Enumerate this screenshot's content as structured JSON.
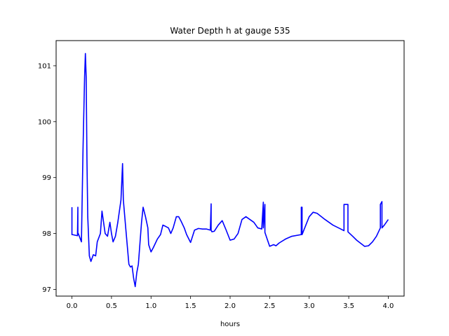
{
  "chart_data": {
    "type": "line",
    "title": "Water Depth h at gauge 535",
    "xlabel": "hours",
    "ylabel": "",
    "xlim": [
      -0.2,
      4.2
    ],
    "ylim": [
      96.88,
      101.45
    ],
    "xticks": [
      0.0,
      0.5,
      1.0,
      1.5,
      2.0,
      2.5,
      3.0,
      3.5,
      4.0
    ],
    "xtick_labels": [
      "0.0",
      "0.5",
      "1.0",
      "1.5",
      "2.0",
      "2.5",
      "3.0",
      "3.5",
      "4.0"
    ],
    "yticks": [
      97,
      98,
      99,
      100,
      101
    ],
    "ytick_labels": [
      "97",
      "98",
      "99",
      "100",
      "101"
    ],
    "grid": false,
    "legend": "none",
    "series": [
      {
        "color": "#0000ff",
        "x": [
          0.0,
          0.0,
          0.005,
          0.07,
          0.075,
          0.075,
          0.08,
          0.12,
          0.14,
          0.16,
          0.17,
          0.18,
          0.19,
          0.2,
          0.22,
          0.24,
          0.27,
          0.3,
          0.32,
          0.36,
          0.38,
          0.42,
          0.45,
          0.48,
          0.5,
          0.52,
          0.55,
          0.58,
          0.62,
          0.64,
          0.65,
          0.68,
          0.72,
          0.74,
          0.76,
          0.78,
          0.8,
          0.82,
          0.84,
          0.88,
          0.9,
          0.93,
          0.96,
          0.97,
          1.0,
          1.03,
          1.08,
          1.12,
          1.15,
          1.18,
          1.22,
          1.25,
          1.28,
          1.32,
          1.35,
          1.38,
          1.42,
          1.45,
          1.5,
          1.55,
          1.6,
          1.65,
          1.7,
          1.75,
          1.76,
          1.76,
          1.77,
          1.8,
          1.85,
          1.9,
          1.95,
          2.0,
          2.05,
          2.1,
          2.15,
          2.2,
          2.25,
          2.3,
          2.35,
          2.4,
          2.42,
          2.42,
          2.44,
          2.44,
          2.5,
          2.55,
          2.58,
          2.62,
          2.7,
          2.78,
          2.9,
          2.9,
          2.91,
          2.91,
          3.0,
          3.05,
          3.1,
          3.2,
          3.3,
          3.4,
          3.44,
          3.44,
          3.49,
          3.49,
          3.55,
          3.6,
          3.7,
          3.75,
          3.8,
          3.85,
          3.9,
          3.9,
          3.92,
          3.92,
          3.95,
          4.0
        ],
        "y": [
          98.47,
          97.98,
          97.98,
          97.96,
          98.47,
          97.98,
          98.0,
          97.85,
          99.5,
          100.8,
          101.22,
          100.8,
          99.3,
          98.3,
          97.6,
          97.5,
          97.62,
          97.6,
          97.85,
          98.0,
          98.4,
          98.0,
          97.95,
          98.2,
          98.0,
          97.85,
          97.95,
          98.2,
          98.6,
          99.25,
          98.6,
          98.1,
          97.45,
          97.4,
          97.42,
          97.2,
          97.05,
          97.3,
          97.45,
          98.2,
          98.47,
          98.3,
          98.1,
          97.8,
          97.67,
          97.75,
          97.9,
          97.98,
          98.15,
          98.13,
          98.1,
          98.0,
          98.1,
          98.3,
          98.3,
          98.22,
          98.1,
          97.98,
          97.84,
          98.06,
          98.09,
          98.08,
          98.08,
          98.06,
          98.53,
          98.06,
          98.03,
          98.04,
          98.15,
          98.23,
          98.06,
          97.88,
          97.9,
          98.0,
          98.25,
          98.3,
          98.25,
          98.2,
          98.1,
          98.08,
          98.56,
          98.1,
          98.52,
          98.02,
          97.77,
          97.8,
          97.78,
          97.83,
          97.9,
          97.95,
          97.98,
          98.47,
          98.47,
          97.98,
          98.3,
          98.38,
          98.36,
          98.25,
          98.15,
          98.08,
          98.05,
          98.52,
          98.52,
          98.03,
          97.95,
          97.88,
          97.77,
          97.78,
          97.85,
          97.95,
          98.1,
          98.52,
          98.57,
          98.1,
          98.15,
          98.25
        ]
      }
    ]
  }
}
